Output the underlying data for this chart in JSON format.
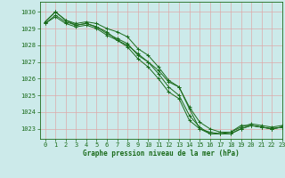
{
  "title": "Graphe pression niveau de la mer (hPa)",
  "bg_color": "#cceaea",
  "grid_color": "#aacccc",
  "line_color": "#1a6b1a",
  "xlim": [
    -0.5,
    23
  ],
  "ylim": [
    1022.4,
    1030.6
  ],
  "yticks": [
    1023,
    1024,
    1025,
    1026,
    1027,
    1028,
    1029,
    1030
  ],
  "xticks": [
    0,
    1,
    2,
    3,
    4,
    5,
    6,
    7,
    8,
    9,
    10,
    11,
    12,
    13,
    14,
    15,
    16,
    17,
    18,
    19,
    20,
    21,
    22,
    23
  ],
  "series": [
    [
      1029.4,
      1030.0,
      1029.5,
      1029.2,
      1029.3,
      1029.1,
      1028.8,
      1028.3,
      1028.0,
      1027.5,
      1027.0,
      1026.5,
      1025.8,
      1025.5,
      1024.2,
      1023.0,
      1022.8,
      1022.7,
      1022.8,
      1023.2,
      1023.2,
      1023.1,
      1023.0,
      1023.1
    ],
    [
      1029.4,
      1030.0,
      1029.5,
      1029.3,
      1029.4,
      1029.3,
      1029.0,
      1028.8,
      1028.5,
      1027.8,
      1027.4,
      1026.7,
      1025.9,
      1025.5,
      1024.3,
      1023.4,
      1023.0,
      1022.8,
      1022.8,
      1023.1,
      1023.3,
      1023.2,
      1023.1,
      1023.2
    ],
    [
      1029.3,
      1029.8,
      1029.4,
      1029.2,
      1029.3,
      1029.1,
      1028.7,
      1028.4,
      1028.1,
      1027.4,
      1027.0,
      1026.3,
      1025.5,
      1025.0,
      1023.8,
      1023.1,
      1022.7,
      1022.7,
      1022.7,
      1023.0,
      1023.2,
      1023.1,
      1023.0,
      1023.1
    ],
    [
      1029.3,
      1029.7,
      1029.3,
      1029.1,
      1029.2,
      1029.0,
      1028.6,
      1028.3,
      1027.9,
      1027.2,
      1026.7,
      1026.0,
      1025.2,
      1024.8,
      1023.5,
      1023.0,
      1022.7,
      1022.7,
      1022.7,
      1023.0,
      1023.2,
      1023.1,
      1023.0,
      1023.1
    ]
  ]
}
